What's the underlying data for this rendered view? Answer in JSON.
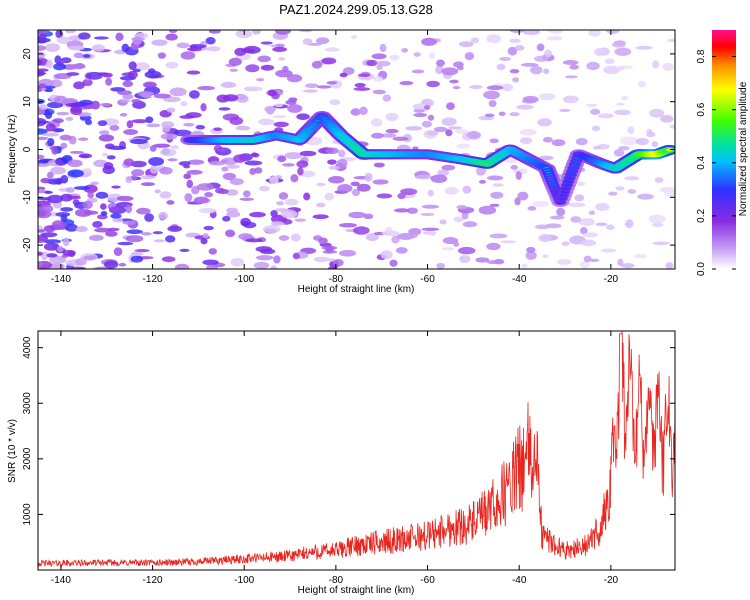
{
  "title": "PAZ1.2024.299.05.13.G28",
  "chart_data": [
    {
      "type": "heatmap",
      "xlabel": "Height of straight line (km)",
      "ylabel": "Frequency (Hz)",
      "xlim": [
        -145,
        -6
      ],
      "ylim": [
        -25,
        25
      ],
      "xticks": [
        -140,
        -120,
        -100,
        -80,
        -60,
        -40,
        -20
      ],
      "yticks": [
        -20,
        -10,
        0,
        10,
        20
      ],
      "colorbar": {
        "label": "Normalized spectral amplitude",
        "range": [
          0,
          0.9
        ],
        "ticks": [
          0,
          0.2,
          0.4,
          0.6,
          0.8
        ],
        "colors": [
          "#ffffff",
          "#c9a4f5",
          "#8a2be2",
          "#3030ff",
          "#00c0ff",
          "#00e0a0",
          "#40ff00",
          "#ffff00",
          "#ff9000",
          "#ff0000",
          "#ff1090"
        ]
      },
      "ridge": [
        {
          "x": -112,
          "y": 2,
          "amp": 0.3
        },
        {
          "x": -104,
          "y": 2,
          "amp": 0.45
        },
        {
          "x": -98,
          "y": 2,
          "amp": 0.5
        },
        {
          "x": -93,
          "y": 3,
          "amp": 0.4
        },
        {
          "x": -88,
          "y": 2,
          "amp": 0.45
        },
        {
          "x": -83,
          "y": 7,
          "amp": 0.35
        },
        {
          "x": -79,
          "y": 3,
          "amp": 0.45
        },
        {
          "x": -74,
          "y": -1,
          "amp": 0.55
        },
        {
          "x": -68,
          "y": -1,
          "amp": 0.45
        },
        {
          "x": -60,
          "y": -1,
          "amp": 0.4
        },
        {
          "x": -53,
          "y": -2,
          "amp": 0.45
        },
        {
          "x": -47,
          "y": -3,
          "amp": 0.6
        },
        {
          "x": -42,
          "y": 0,
          "amp": 0.45
        },
        {
          "x": -38,
          "y": -2,
          "amp": 0.4
        },
        {
          "x": -34,
          "y": -4,
          "amp": 0.35
        },
        {
          "x": -31,
          "y": -11,
          "amp": 0.25
        },
        {
          "x": -27,
          "y": -1,
          "amp": 0.3
        },
        {
          "x": -22,
          "y": -3,
          "amp": 0.4
        },
        {
          "x": -19,
          "y": -4,
          "amp": 0.5
        },
        {
          "x": -14,
          "y": -1,
          "amp": 0.6
        },
        {
          "x": -10,
          "y": -1,
          "amp": 0.8
        },
        {
          "x": -7,
          "y": 0,
          "amp": 0.6
        }
      ]
    },
    {
      "type": "line",
      "xlabel": "Height of straight line (km)",
      "ylabel": "SNR (10 * v/v)",
      "xlim": [
        -145,
        -6
      ],
      "ylim": [
        0,
        4300
      ],
      "xticks": [
        -140,
        -120,
        -100,
        -80,
        -60,
        -40,
        -20
      ],
      "yticks": [
        1000,
        2000,
        3000,
        4000
      ],
      "color": "#e8251e",
      "envelope": [
        {
          "x": -145,
          "y": 120
        },
        {
          "x": -130,
          "y": 130
        },
        {
          "x": -120,
          "y": 130
        },
        {
          "x": -110,
          "y": 150
        },
        {
          "x": -100,
          "y": 200
        },
        {
          "x": -90,
          "y": 250
        },
        {
          "x": -85,
          "y": 320
        },
        {
          "x": -80,
          "y": 350
        },
        {
          "x": -75,
          "y": 450
        },
        {
          "x": -70,
          "y": 500
        },
        {
          "x": -65,
          "y": 560
        },
        {
          "x": -60,
          "y": 620
        },
        {
          "x": -55,
          "y": 750
        },
        {
          "x": -50,
          "y": 850
        },
        {
          "x": -46,
          "y": 1100
        },
        {
          "x": -43,
          "y": 1400
        },
        {
          "x": -40,
          "y": 1800
        },
        {
          "x": -38,
          "y": 2100
        },
        {
          "x": -36,
          "y": 1800
        },
        {
          "x": -35,
          "y": 600
        },
        {
          "x": -30,
          "y": 350
        },
        {
          "x": -25,
          "y": 450
        },
        {
          "x": -22,
          "y": 800
        },
        {
          "x": -20,
          "y": 1500
        },
        {
          "x": -19,
          "y": 2500
        },
        {
          "x": -18,
          "y": 3300
        },
        {
          "x": -16,
          "y": 3100
        },
        {
          "x": -14,
          "y": 2700
        },
        {
          "x": -12,
          "y": 2500
        },
        {
          "x": -10,
          "y": 2700
        },
        {
          "x": -8,
          "y": 2500
        },
        {
          "x": -6,
          "y": 2600
        }
      ]
    }
  ]
}
